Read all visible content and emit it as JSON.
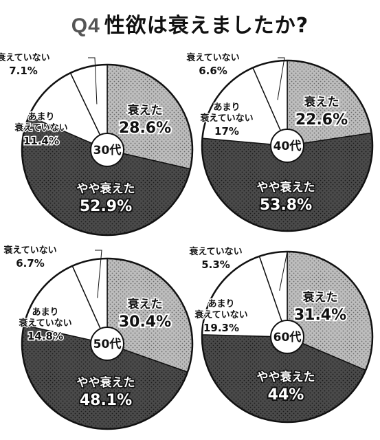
{
  "title": {
    "prefix": "Q4",
    "text": "性欲は衰えましたか?"
  },
  "colors": {
    "dark": "#4a4a4a",
    "medium": "#b4b4b4",
    "light": "#ffffff",
    "outline": "#111111"
  },
  "chart_data": [
    {
      "type": "pie",
      "center_label": "30代",
      "slices": [
        {
          "label": "衰えた",
          "value": 28.6,
          "display": "28.6%"
        },
        {
          "label": "やや衰えた",
          "value": 52.9,
          "display": "52.9%"
        },
        {
          "label": "あまり衰えていない",
          "value": 11.4,
          "display": "11.4%"
        },
        {
          "label": "衰えていない",
          "value": 7.1,
          "display": "7.1%"
        }
      ]
    },
    {
      "type": "pie",
      "center_label": "40代",
      "slices": [
        {
          "label": "衰えた",
          "value": 22.6,
          "display": "22.6%"
        },
        {
          "label": "やや衰えた",
          "value": 53.8,
          "display": "53.8%"
        },
        {
          "label": "あまり衰えていない",
          "value": 17,
          "display": "17%"
        },
        {
          "label": "衰えていない",
          "value": 6.6,
          "display": "6.6%"
        }
      ]
    },
    {
      "type": "pie",
      "center_label": "50代",
      "slices": [
        {
          "label": "衰えた",
          "value": 30.4,
          "display": "30.4%"
        },
        {
          "label": "やや衰えた",
          "value": 48.1,
          "display": "48.1%"
        },
        {
          "label": "あまり衰えていない",
          "value": 14.8,
          "display": "14.8%"
        },
        {
          "label": "衰えていない",
          "value": 6.7,
          "display": "6.7%"
        }
      ]
    },
    {
      "type": "pie",
      "center_label": "60代",
      "slices": [
        {
          "label": "衰えた",
          "value": 31.4,
          "display": "31.4%"
        },
        {
          "label": "やや衰えた",
          "value": 44,
          "display": "44%"
        },
        {
          "label": "あまり衰えていない",
          "value": 19.3,
          "display": "19.3%"
        },
        {
          "label": "衰えていない",
          "value": 5.3,
          "display": "5.3%"
        }
      ]
    }
  ]
}
